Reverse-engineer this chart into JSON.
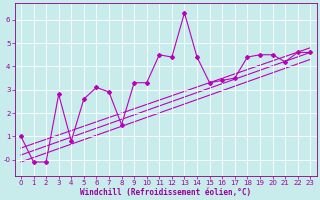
{
  "xlabel": "Windchill (Refroidissement éolien,°C)",
  "background_color": "#c8ecec",
  "line_color": "#bb00bb",
  "grid_color": "#aadddd",
  "xlim": [
    -0.5,
    23.5
  ],
  "ylim": [
    -0.7,
    6.7
  ],
  "yticks": [
    0,
    1,
    2,
    3,
    4,
    5,
    6
  ],
  "ytick_labels": [
    "-0",
    "1",
    "2",
    "3",
    "4",
    "5",
    "6"
  ],
  "xticks": [
    0,
    1,
    2,
    3,
    4,
    5,
    6,
    7,
    8,
    9,
    10,
    11,
    12,
    13,
    14,
    15,
    16,
    17,
    18,
    19,
    20,
    21,
    22,
    23
  ],
  "main_x": [
    0,
    1,
    2,
    3,
    4,
    5,
    6,
    7,
    8,
    9,
    10,
    11,
    12,
    13,
    14,
    15,
    16,
    17,
    18,
    19,
    20,
    21,
    22,
    23
  ],
  "main_y": [
    1.0,
    -0.1,
    -0.1,
    2.8,
    0.8,
    2.6,
    3.1,
    2.9,
    1.5,
    3.3,
    3.3,
    4.5,
    4.4,
    6.3,
    4.4,
    3.3,
    3.4,
    3.5,
    4.4,
    4.5,
    4.5,
    4.2,
    4.6,
    4.6
  ],
  "trend1_x": [
    0,
    23
  ],
  "trend1_y": [
    -0.1,
    4.3
  ],
  "trend2_x": [
    0,
    23
  ],
  "trend2_y": [
    0.2,
    4.6
  ],
  "trend3_x": [
    0,
    23
  ],
  "trend3_y": [
    0.5,
    4.8
  ]
}
